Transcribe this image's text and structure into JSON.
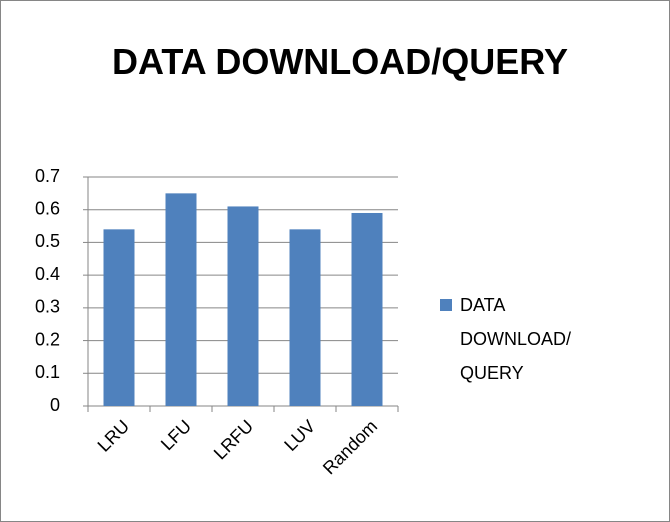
{
  "chart_data": {
    "type": "bar",
    "title": "DATA DOWNLOAD/QUERY",
    "categories": [
      "LRU",
      "LFU",
      "LRFU",
      "LUV",
      "Random"
    ],
    "series": [
      {
        "name": "DATA DOWNLOAD/QUERY",
        "color": "#4f81bd",
        "values": [
          0.54,
          0.65,
          0.61,
          0.54,
          0.59
        ]
      }
    ],
    "ylim": [
      0,
      0.7
    ],
    "yticks": [
      0,
      0.1,
      0.2,
      0.3,
      0.4,
      0.5,
      0.6,
      0.7
    ],
    "grid": true,
    "legend": "right"
  }
}
